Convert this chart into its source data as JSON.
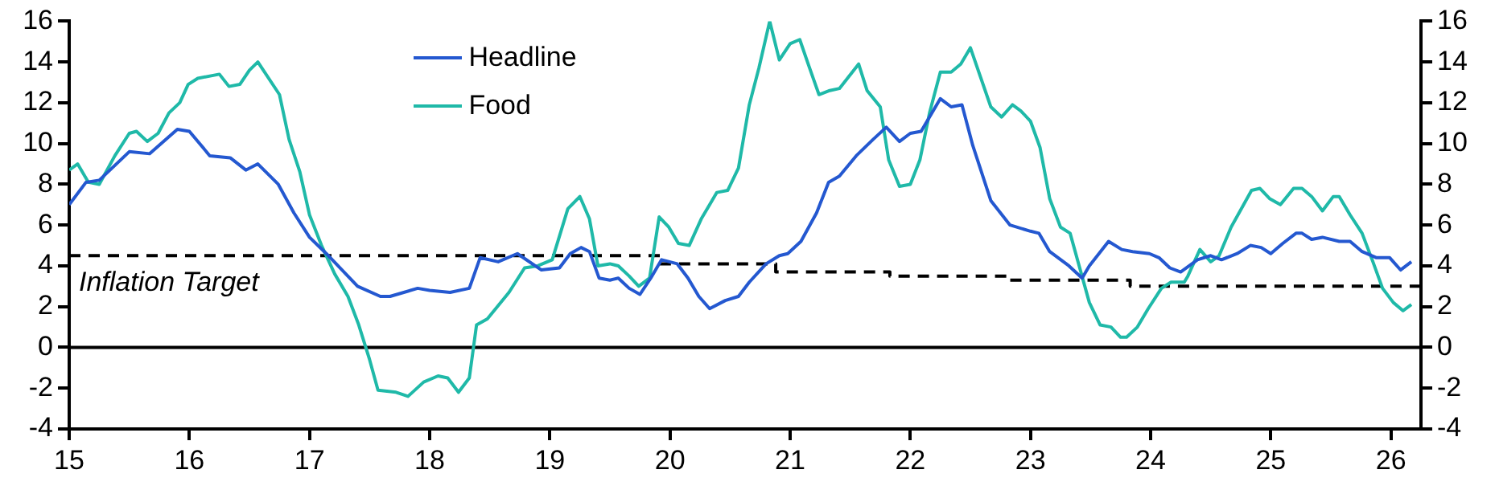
{
  "chart_data": {
    "type": "line",
    "legend": "top",
    "grid": false,
    "xlim": [
      15,
      26.25
    ],
    "xticks": [
      15,
      16,
      17,
      18,
      19,
      20,
      21,
      22,
      23,
      24,
      25,
      26
    ],
    "ylim": [
      -4,
      16
    ],
    "yticks": [
      -4,
      -2,
      0,
      2,
      4,
      6,
      8,
      10,
      12,
      14,
      16
    ],
    "y2lim": [
      -4,
      16
    ],
    "y2ticks": [
      -4,
      -2,
      0,
      2,
      4,
      6,
      8,
      10,
      12,
      14,
      16
    ],
    "annotations": [
      "Inflation Target"
    ],
    "ref_lines": [
      {
        "axis": "y",
        "value": 0,
        "color": "#000000",
        "line_style": "solid"
      }
    ],
    "series": [
      {
        "name": "Headline",
        "color": "#2458d0",
        "x": [
          15.0,
          15.14,
          15.25,
          15.5,
          15.67,
          15.9,
          16.0,
          16.17,
          16.34,
          16.47,
          16.57,
          16.74,
          16.87,
          17.0,
          17.14,
          17.4,
          17.59,
          17.67,
          17.9,
          18.0,
          18.17,
          18.33,
          18.42,
          18.57,
          18.73,
          18.93,
          19.08,
          19.17,
          19.26,
          19.33,
          19.41,
          19.5,
          19.57,
          19.66,
          19.75,
          19.84,
          19.93,
          20.06,
          20.15,
          20.24,
          20.33,
          20.46,
          20.57,
          20.66,
          20.8,
          20.91,
          20.98,
          21.09,
          21.22,
          21.32,
          21.41,
          21.55,
          21.69,
          21.8,
          21.91,
          22.0,
          22.09,
          22.25,
          22.34,
          22.43,
          22.52,
          22.67,
          22.83,
          23.0,
          23.07,
          23.16,
          23.32,
          23.43,
          23.49,
          23.65,
          23.76,
          23.85,
          23.99,
          24.07,
          24.16,
          24.25,
          24.39,
          24.5,
          24.59,
          24.72,
          24.83,
          24.92,
          25.0,
          25.1,
          25.21,
          25.26,
          25.34,
          25.43,
          25.57,
          25.66,
          25.76,
          25.88,
          25.99,
          26.08,
          26.17
        ],
        "values": [
          7.0,
          8.1,
          8.2,
          9.6,
          9.5,
          10.7,
          10.6,
          9.4,
          9.3,
          8.7,
          9.0,
          8.0,
          6.6,
          5.4,
          4.6,
          3.0,
          2.5,
          2.5,
          2.9,
          2.8,
          2.7,
          2.9,
          4.4,
          4.2,
          4.6,
          3.8,
          3.9,
          4.6,
          4.9,
          4.7,
          3.4,
          3.3,
          3.4,
          2.9,
          2.6,
          3.4,
          4.3,
          4.1,
          3.4,
          2.5,
          1.9,
          2.3,
          2.5,
          3.2,
          4.1,
          4.5,
          4.6,
          5.2,
          6.6,
          8.1,
          8.4,
          9.4,
          10.2,
          10.8,
          10.1,
          10.5,
          10.6,
          12.2,
          11.8,
          11.9,
          9.9,
          7.2,
          6.0,
          5.7,
          5.6,
          4.7,
          4.0,
          3.4,
          4.0,
          5.2,
          4.8,
          4.7,
          4.6,
          4.4,
          3.9,
          3.7,
          4.3,
          4.5,
          4.3,
          4.6,
          5.0,
          4.9,
          4.6,
          5.1,
          5.6,
          5.6,
          5.3,
          5.4,
          5.2,
          5.2,
          4.7,
          4.4,
          4.4,
          3.8,
          4.2
        ]
      },
      {
        "name": "Food",
        "color": "#1fb9a8",
        "x": [
          15.0,
          15.07,
          15.16,
          15.25,
          15.38,
          15.5,
          15.56,
          15.65,
          15.74,
          15.83,
          15.92,
          15.99,
          16.07,
          16.25,
          16.33,
          16.42,
          16.5,
          16.57,
          16.75,
          16.83,
          16.92,
          17.0,
          17.1,
          17.21,
          17.32,
          17.41,
          17.5,
          17.57,
          17.72,
          17.82,
          17.95,
          18.07,
          18.15,
          18.24,
          18.33,
          18.39,
          18.48,
          18.66,
          18.79,
          18.9,
          19.02,
          19.15,
          19.25,
          19.33,
          19.4,
          19.5,
          19.57,
          19.66,
          19.74,
          19.83,
          19.91,
          19.99,
          20.07,
          20.16,
          20.26,
          20.39,
          20.48,
          20.57,
          20.66,
          20.74,
          20.83,
          20.91,
          21.0,
          21.08,
          21.15,
          21.24,
          21.33,
          21.41,
          21.57,
          21.64,
          21.75,
          21.82,
          21.91,
          22.0,
          22.08,
          22.16,
          22.25,
          22.34,
          22.42,
          22.5,
          22.67,
          22.76,
          22.85,
          22.92,
          23.0,
          23.08,
          23.16,
          23.25,
          23.33,
          23.41,
          23.49,
          23.58,
          23.67,
          23.75,
          23.8,
          23.89,
          23.98,
          24.09,
          24.17,
          24.28,
          24.31,
          24.41,
          24.5,
          24.57,
          24.67,
          24.84,
          24.91,
          24.99,
          25.08,
          25.19,
          25.26,
          25.34,
          25.43,
          25.52,
          25.57,
          25.66,
          25.76,
          25.85,
          25.93,
          26.02,
          26.1,
          26.17
        ],
        "values": [
          8.7,
          9.0,
          8.1,
          8.0,
          9.4,
          10.5,
          10.6,
          10.1,
          10.5,
          11.5,
          12.0,
          12.9,
          13.2,
          13.4,
          12.8,
          12.9,
          13.6,
          14.0,
          12.4,
          10.2,
          8.6,
          6.5,
          5.0,
          3.6,
          2.5,
          1.1,
          -0.6,
          -2.1,
          -2.2,
          -2.4,
          -1.7,
          -1.4,
          -1.5,
          -2.2,
          -1.5,
          1.1,
          1.4,
          2.7,
          3.9,
          4.0,
          4.3,
          6.8,
          7.4,
          6.3,
          4.0,
          4.1,
          4.0,
          3.5,
          3.0,
          3.4,
          6.4,
          5.9,
          5.1,
          5.0,
          6.3,
          7.6,
          7.7,
          8.8,
          11.9,
          13.7,
          16.0,
          14.1,
          14.9,
          15.1,
          13.9,
          12.4,
          12.6,
          12.7,
          13.9,
          12.6,
          11.8,
          9.2,
          7.9,
          8.0,
          9.2,
          11.5,
          13.5,
          13.5,
          13.9,
          14.7,
          11.8,
          11.3,
          11.9,
          11.6,
          11.1,
          9.8,
          7.3,
          5.9,
          5.6,
          3.9,
          2.2,
          1.1,
          1.0,
          0.5,
          0.5,
          1.0,
          1.9,
          2.9,
          3.2,
          3.2,
          3.5,
          4.8,
          4.2,
          4.5,
          5.9,
          7.7,
          7.8,
          7.3,
          7.0,
          7.8,
          7.8,
          7.4,
          6.7,
          7.4,
          7.4,
          6.5,
          5.6,
          4.2,
          2.9,
          2.2,
          1.8,
          2.1
        ]
      },
      {
        "type": "step",
        "color": "#000000",
        "line_style": "dashed",
        "x": [
          15,
          19.92,
          20.88,
          21.83,
          22.83,
          23.83,
          26.25
        ],
        "values": [
          4.5,
          4.1,
          3.7,
          3.5,
          3.3,
          3.0,
          3.0
        ]
      }
    ]
  }
}
